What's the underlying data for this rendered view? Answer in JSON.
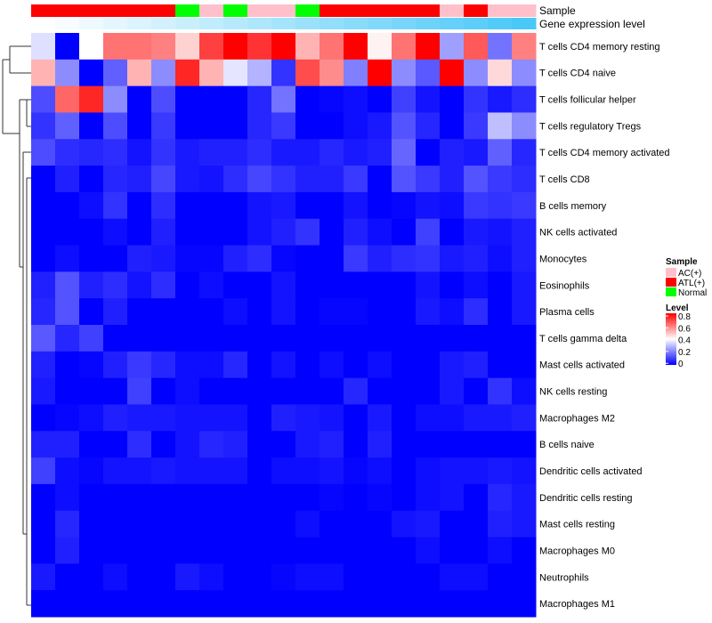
{
  "chart_data": {
    "type": "heatmap",
    "title": "",
    "annotations": {
      "sample_title": "Sample",
      "gene_title": "Gene expression level",
      "samples": [
        "ATL(+)",
        "ATL(+)",
        "ATL(+)",
        "ATL(+)",
        "ATL(+)",
        "ATL(+)",
        "Normal",
        "AC(+)",
        "Normal",
        "AC(+)",
        "AC(+)",
        "Normal",
        "ATL(+)",
        "ATL(+)",
        "ATL(+)",
        "ATL(+)",
        "ATL(+)",
        "AC(+)",
        "ATL(+)",
        "AC(+)",
        "AC(+)"
      ],
      "gene_level": [
        0,
        0.05,
        0.1,
        0.15,
        0.2,
        0.25,
        0.3,
        0.35,
        0.4,
        0.45,
        0.5,
        0.55,
        0.6,
        0.65,
        0.7,
        0.75,
        0.8,
        0.85,
        0.9,
        0.95,
        1.0
      ]
    },
    "colors": {
      "AC(+)": "#ffc0cb",
      "ATL(+)": "#ff0000",
      "Normal": "#00ff00",
      "low": "#0000ff",
      "mid": "#ffffff",
      "high": "#ff0000",
      "gene_low": "#ffffff",
      "gene_high": "#4ac8f8"
    },
    "rows": [
      "T cells CD4 memory resting",
      "T cells CD4 naive",
      "T cells follicular helper",
      "T cells regulatory  Tregs",
      "T cells CD4 memory activated",
      "T cells CD8",
      "B cells memory",
      "NK cells activated",
      "Monocytes",
      "Eosinophils",
      "Plasma cells",
      "T cells gamma delta",
      "Mast cells activated",
      "NK cells resting",
      "Macrophages M2",
      "B cells naive",
      "Dendritic cells activated",
      "Dendritic cells resting",
      "Mast cells resting",
      "Macrophages M0",
      "Neutrophils",
      "Macrophages M1"
    ],
    "values": [
      [
        0.35,
        0,
        0.4,
        0.62,
        0.62,
        0.6,
        0.47,
        0.7,
        0.8,
        0.72,
        0.8,
        0.52,
        0.62,
        0.8,
        0.42,
        0.62,
        0.8,
        0.25,
        0.66,
        0.18,
        0.6
      ],
      [
        0.52,
        0.22,
        0,
        0.15,
        0.52,
        0.22,
        0.74,
        0.52,
        0.36,
        0.28,
        0.08,
        0.68,
        0.58,
        0.2,
        0.8,
        0.22,
        0.14,
        0.8,
        0.22,
        0.46,
        0.22
      ],
      [
        0.12,
        0.64,
        0.74,
        0.22,
        0,
        0.12,
        0,
        0,
        0,
        0.06,
        0.18,
        0,
        0.01,
        0.02,
        0,
        0.1,
        0.03,
        0,
        0.08,
        0.04,
        0.07
      ],
      [
        0.08,
        0.15,
        0,
        0.12,
        0,
        0.09,
        0,
        0,
        0,
        0.06,
        0.09,
        0,
        0,
        0.02,
        0.04,
        0.13,
        0.06,
        0,
        0.09,
        0.3,
        0.22
      ],
      [
        0.12,
        0.07,
        0.06,
        0.07,
        0.03,
        0.08,
        0.04,
        0.05,
        0.05,
        0.07,
        0.04,
        0.04,
        0.06,
        0.04,
        0.05,
        0.16,
        0,
        0.05,
        0.04,
        0.15,
        0.06
      ],
      [
        0,
        0.05,
        0,
        0.06,
        0.05,
        0.11,
        0.04,
        0.03,
        0.07,
        0.11,
        0.08,
        0.05,
        0.05,
        0.09,
        0,
        0.13,
        0.09,
        0.05,
        0.13,
        0.09,
        0.07
      ],
      [
        0,
        0,
        0.02,
        0.08,
        0,
        0.07,
        0,
        0,
        0,
        0.03,
        0.04,
        0,
        0,
        0.03,
        0,
        0.01,
        0.03,
        0.02,
        0.09,
        0.08,
        0.09
      ],
      [
        0,
        0,
        0,
        0.02,
        0,
        0.05,
        0,
        0,
        0,
        0.03,
        0.05,
        0.08,
        0,
        0.05,
        0.02,
        0,
        0.1,
        0,
        0.04,
        0.03,
        0.05
      ],
      [
        0,
        0.02,
        0,
        0,
        0.05,
        0.04,
        0.01,
        0.01,
        0.05,
        0.07,
        0.01,
        0,
        0,
        0.09,
        0.05,
        0.07,
        0.08,
        0.04,
        0.05,
        0.02,
        0.05
      ],
      [
        0.05,
        0.13,
        0.05,
        0.07,
        0.03,
        0.07,
        0,
        0.02,
        0,
        0,
        0.03,
        0,
        0,
        0,
        0,
        0,
        0.03,
        0,
        0.02,
        0,
        0.04
      ],
      [
        0.06,
        0.13,
        0,
        0.05,
        0,
        0,
        0,
        0,
        0.02,
        0,
        0.03,
        0,
        0.01,
        0.01,
        0,
        0,
        0.04,
        0.02,
        0.07,
        0,
        0.04
      ],
      [
        0.14,
        0.06,
        0.1,
        0,
        0,
        0,
        0,
        0,
        0,
        0,
        0,
        0,
        0,
        0,
        0,
        0,
        0,
        0,
        0,
        0,
        0
      ],
      [
        0.05,
        0,
        0.01,
        0.05,
        0.09,
        0.06,
        0.02,
        0.02,
        0.06,
        0,
        0.03,
        0,
        0.02,
        0,
        0.02,
        0,
        0,
        0.04,
        0.05,
        0,
        0
      ],
      [
        0.04,
        0,
        0,
        0,
        0.1,
        0,
        0.02,
        0,
        0,
        0,
        0,
        0,
        0,
        0.06,
        0,
        0,
        0,
        0.04,
        0,
        0.08,
        0.02
      ],
      [
        0,
        0.01,
        0.02,
        0.05,
        0.04,
        0.04,
        0.03,
        0.03,
        0.03,
        0,
        0.05,
        0.04,
        0.03,
        0,
        0.04,
        0,
        0.02,
        0.02,
        0.04,
        0.04,
        0.05
      ],
      [
        0.05,
        0.05,
        0,
        0,
        0.07,
        0,
        0.03,
        0.06,
        0.05,
        0,
        0,
        0.04,
        0.05,
        0,
        0.05,
        0,
        0,
        0,
        0,
        0,
        0
      ],
      [
        0.1,
        0.02,
        0.01,
        0.03,
        0.03,
        0.04,
        0.03,
        0.03,
        0.03,
        0,
        0.02,
        0.02,
        0.03,
        0.01,
        0.02,
        0,
        0.02,
        0.03,
        0.03,
        0.04,
        0.03
      ],
      [
        0,
        0.02,
        0,
        0,
        0,
        0,
        0,
        0,
        0,
        0,
        0,
        0,
        0.01,
        0,
        0.01,
        0,
        0.02,
        0.03,
        0,
        0.06,
        0.04
      ],
      [
        0,
        0.06,
        0,
        0,
        0,
        0,
        0,
        0,
        0,
        0,
        0,
        0.02,
        0,
        0,
        0,
        0.03,
        0.04,
        0,
        0,
        0.05,
        0.04
      ],
      [
        0,
        0.05,
        0,
        0,
        0,
        0,
        0,
        0,
        0,
        0,
        0,
        0,
        0,
        0,
        0,
        0,
        0.02,
        0,
        0,
        0.02,
        0
      ],
      [
        0.04,
        0,
        0,
        0.02,
        0,
        0,
        0.04,
        0.02,
        0,
        0,
        0.01,
        0.02,
        0.02,
        0,
        0,
        0,
        0,
        0.02,
        0.02,
        0,
        0
      ],
      [
        0,
        0,
        0,
        0,
        0,
        0,
        0,
        0,
        0,
        0,
        0,
        0,
        0,
        0,
        0,
        0,
        0,
        0,
        0,
        0,
        0
      ]
    ],
    "color_range": [
      0,
      0.8
    ],
    "legend": {
      "sample_title": "Sample",
      "sample_items": [
        "AC(+)",
        "ATL(+)",
        "Normal"
      ],
      "level_title": "Level",
      "level_ticks": [
        "0.8",
        "0.6",
        "0.4",
        "0.2",
        "0"
      ],
      "position": "right"
    }
  }
}
